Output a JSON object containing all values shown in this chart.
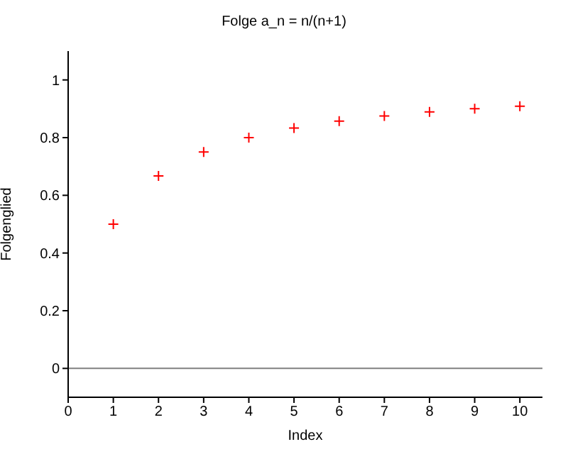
{
  "chart_data": {
    "type": "scatter",
    "title": "Folge a_n = n/(n+1)",
    "xlabel": "Index",
    "ylabel": "Folgenglied",
    "x": [
      1,
      2,
      3,
      4,
      5,
      6,
      7,
      8,
      9,
      10
    ],
    "series": [
      {
        "color": "#ff0000",
        "values": [
          0.5,
          0.667,
          0.75,
          0.8,
          0.833,
          0.857,
          0.875,
          0.889,
          0.9,
          0.909
        ]
      }
    ],
    "xlim": [
      0,
      10.5
    ],
    "xticks": [
      0,
      1,
      2,
      3,
      4,
      5,
      6,
      7,
      8,
      9,
      10
    ],
    "ylim": [
      -0.1,
      1.1
    ],
    "yticks": [
      0,
      0.2,
      0.4,
      0.6,
      0.8,
      1
    ],
    "ref_lines": [
      {
        "axis": "y",
        "value": 0,
        "color": "#808080"
      }
    ],
    "marker": "cross",
    "grid": false,
    "legend": false
  }
}
